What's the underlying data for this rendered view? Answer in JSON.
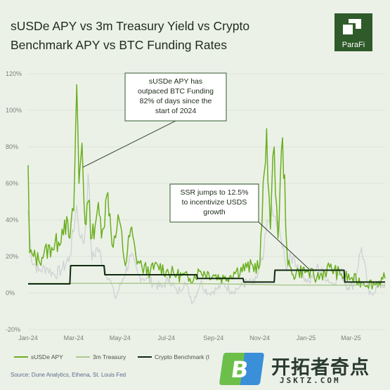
{
  "header": {
    "title_line1": "sUSDe APY vs 3m Treasury Yield vs Crypto",
    "title_line2": "Benchmark APY vs BTC Funding Rates",
    "brand": "ParaFi"
  },
  "source": "Source: Dune Analytics, Ethena, St. Louis Fed",
  "watermark": {
    "cn": "开拓者奇点",
    "url": "JSKTZ.COM",
    "letter": "B"
  },
  "colors": {
    "susde": "#6aaf1e",
    "treasury": "#a9c98e",
    "benchmark": "#0f2a10",
    "btc_funding": "#cfd4d4",
    "background": "#ecf1e8"
  },
  "chart_data": {
    "type": "line",
    "title": "sUSDe APY vs 3m Treasury Yield vs Crypto Benchmark APY vs BTC Funding Rates",
    "ylim": [
      -20,
      120
    ],
    "y_ticks": [
      -20,
      0,
      20,
      40,
      60,
      80,
      100,
      120
    ],
    "y_tick_labels": [
      "-20%",
      "0%",
      "20%",
      "40%",
      "60%",
      "80%",
      "100%",
      "120%"
    ],
    "x_ticks": [
      "2024-01-01",
      "2024-03-01",
      "2024-05-01",
      "2024-07-01",
      "2024-09-01",
      "2024-11-01",
      "2025-01-01",
      "2025-03-01"
    ],
    "x_tick_labels": [
      "Jan-24",
      "Mar-24",
      "May-24",
      "Jul-24",
      "Sep-24",
      "Nov-24",
      "Jan-25",
      "Mar-25"
    ],
    "xlim": [
      "2024-01-01",
      "2025-04-15"
    ],
    "legend_position": "bottom",
    "series": [
      {
        "name": "BTC Funding",
        "x": [
          "2024-01-01",
          "2024-01-05",
          "2024-01-15",
          "2024-01-25",
          "2024-02-05",
          "2024-02-15",
          "2024-02-25",
          "2024-03-05",
          "2024-03-10",
          "2024-03-15",
          "2024-03-20",
          "2024-03-25",
          "2024-04-01",
          "2024-04-10",
          "2024-04-18",
          "2024-04-25",
          "2024-05-05",
          "2024-05-15",
          "2024-05-25",
          "2024-06-05",
          "2024-06-15",
          "2024-06-25",
          "2024-07-05",
          "2024-07-15",
          "2024-07-25",
          "2024-08-05",
          "2024-08-15",
          "2024-08-25",
          "2024-09-05",
          "2024-09-15",
          "2024-09-25",
          "2024-10-05",
          "2024-10-15",
          "2024-10-25",
          "2024-11-05",
          "2024-11-12",
          "2024-11-20",
          "2024-11-28",
          "2024-12-05",
          "2024-12-15",
          "2024-12-25",
          "2025-01-05",
          "2025-01-15",
          "2025-01-25",
          "2025-02-05",
          "2025-02-15",
          "2025-02-25",
          "2025-03-05",
          "2025-03-15",
          "2025-03-25",
          "2025-04-05",
          "2025-04-15"
        ],
        "values": [
          45,
          20,
          12,
          14,
          10,
          13,
          20,
          48,
          30,
          28,
          65,
          18,
          25,
          15,
          7,
          -3,
          8,
          20,
          10,
          8,
          5,
          3,
          8,
          0,
          6,
          -5,
          6,
          0,
          2,
          5,
          1,
          3,
          6,
          5,
          18,
          40,
          42,
          32,
          15,
          20,
          12,
          6,
          14,
          10,
          5,
          12,
          3,
          5,
          25,
          -1,
          3,
          5
        ]
      },
      {
        "name": "sUSDe APY",
        "x": [
          "2024-01-01",
          "2024-01-03",
          "2024-01-08",
          "2024-01-15",
          "2024-01-22",
          "2024-02-01",
          "2024-02-10",
          "2024-02-18",
          "2024-02-25",
          "2024-03-01",
          "2024-03-05",
          "2024-03-08",
          "2024-03-12",
          "2024-03-16",
          "2024-03-20",
          "2024-03-25",
          "2024-04-01",
          "2024-04-08",
          "2024-04-15",
          "2024-04-22",
          "2024-04-30",
          "2024-05-08",
          "2024-05-15",
          "2024-05-22",
          "2024-05-30",
          "2024-06-10",
          "2024-06-20",
          "2024-07-01",
          "2024-07-15",
          "2024-08-01",
          "2024-08-15",
          "2024-09-01",
          "2024-09-15",
          "2024-10-01",
          "2024-10-15",
          "2024-11-01",
          "2024-11-10",
          "2024-11-15",
          "2024-11-20",
          "2024-11-25",
          "2024-12-01",
          "2024-12-08",
          "2024-12-15",
          "2024-12-22",
          "2025-01-01",
          "2025-01-15",
          "2025-02-01",
          "2025-02-15",
          "2025-03-01",
          "2025-03-15",
          "2025-04-01",
          "2025-04-15"
        ],
        "values": [
          70,
          22,
          20,
          18,
          22,
          25,
          28,
          40,
          30,
          45,
          114,
          60,
          82,
          38,
          50,
          30,
          45,
          35,
          55,
          25,
          40,
          15,
          35,
          20,
          14,
          12,
          15,
          12,
          10,
          8,
          12,
          10,
          8,
          12,
          14,
          15,
          90,
          35,
          80,
          30,
          85,
          15,
          10,
          12,
          12,
          8,
          14,
          10,
          8,
          6,
          5,
          8
        ]
      },
      {
        "name": "3m Treasury",
        "x": [
          "2024-01-01",
          "2024-06-01",
          "2024-09-15",
          "2024-12-01",
          "2025-04-15"
        ],
        "values": [
          5.3,
          5.3,
          5.0,
          4.4,
          4.3
        ]
      },
      {
        "name": "Crypto Benchmark",
        "x": [
          "2024-01-01",
          "2024-02-25",
          "2024-02-26",
          "2024-04-10",
          "2024-04-11",
          "2024-08-10",
          "2024-08-11",
          "2024-10-10",
          "2024-10-11",
          "2024-11-20",
          "2024-11-21",
          "2025-02-20",
          "2025-02-21",
          "2025-04-15"
        ],
        "values": [
          5,
          5,
          15,
          15,
          10,
          10,
          8,
          8,
          6,
          6,
          12.5,
          12.5,
          6,
          6
        ]
      }
    ],
    "annotations": [
      {
        "lines": [
          "sUSDe APY has",
          "outpaced BTC Funding",
          "82% of days since the",
          "start of 2024"
        ]
      },
      {
        "lines": [
          "SSR jumps to 12.5%",
          "to incentivize USDS",
          "growth"
        ]
      }
    ],
    "legend": [
      "sUSDe APY",
      "3m Treasury",
      "Crypto Benchmark (I"
    ]
  }
}
